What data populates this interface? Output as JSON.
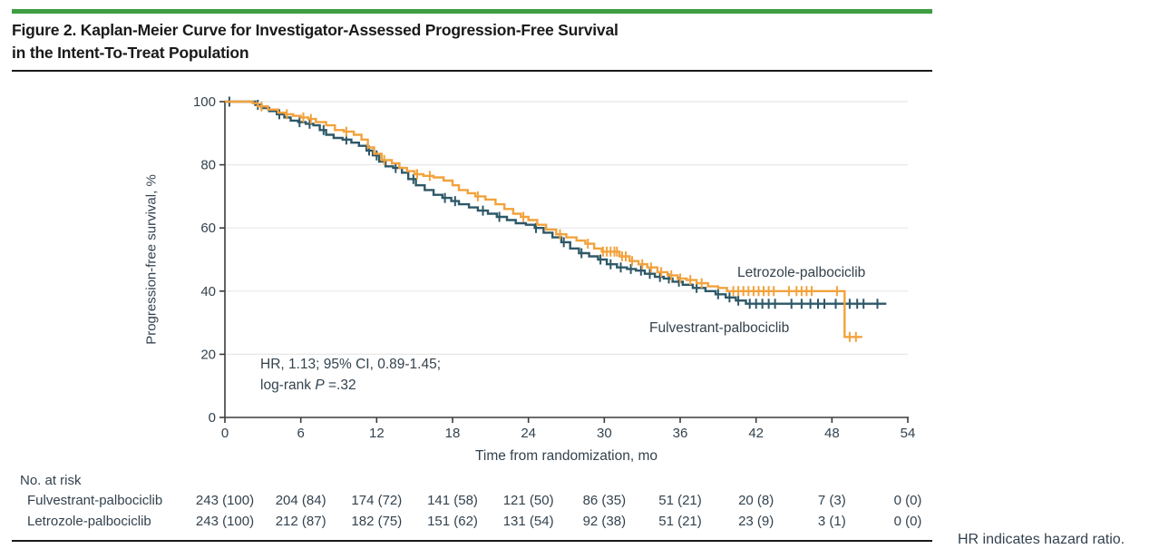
{
  "figure": {
    "title_line1": "Figure 2. Kaplan-Meier Curve for Investigator-Assessed Progression-Free Survival",
    "title_line2": "in the Intent-To-Treat Population"
  },
  "colors": {
    "accent_bar": "#3E9E41",
    "title_text": "#1A1A1A",
    "body_text": "#33424E",
    "rule": "#1A1A1A",
    "gridline": "#E8E8E8",
    "axis": "#3C3C3C",
    "fulvestrant": "#2E5868",
    "letrozole": "#F2A23C"
  },
  "chart_data": {
    "type": "line",
    "subtype": "kaplan-meier-step",
    "title": "Kaplan-Meier Curve for Investigator-Assessed Progression-Free Survival in the Intent-To-Treat Population",
    "x_axis_label": "Time from randomization, mo",
    "y_axis_label": "Progression-free survival, %",
    "xlim": [
      0,
      54
    ],
    "ylim": [
      0,
      100
    ],
    "x_ticks": [
      0,
      6,
      12,
      18,
      24,
      30,
      36,
      42,
      48,
      54
    ],
    "y_ticks": [
      0,
      20,
      40,
      60,
      80,
      100
    ],
    "grid": "horizontal-gridlines-on",
    "legend_position": "labels-on-plot",
    "annotation": {
      "line1": "HR, 1.13; 95% CI, 0.89-1.45;",
      "line2_prefix": "log-rank ",
      "line2_italic": "P",
      "line2_suffix": " =.32"
    },
    "series": [
      {
        "name": "Fulvestrant-palbociclib",
        "color": "#2E5868",
        "points": [
          [
            0,
            100
          ],
          [
            2.4,
            99
          ],
          [
            2.9,
            98
          ],
          [
            3.5,
            97
          ],
          [
            4.1,
            96
          ],
          [
            4.7,
            95
          ],
          [
            5.2,
            94
          ],
          [
            5.8,
            93.5
          ],
          [
            6.4,
            93
          ],
          [
            7,
            92.5
          ],
          [
            7.5,
            91
          ],
          [
            8,
            89.5
          ],
          [
            8.6,
            88.5
          ],
          [
            9.3,
            88
          ],
          [
            10,
            87
          ],
          [
            10.6,
            86
          ],
          [
            11.2,
            84.5
          ],
          [
            11.7,
            83
          ],
          [
            12.2,
            81
          ],
          [
            12.7,
            79.5
          ],
          [
            13.3,
            79
          ],
          [
            14,
            77.5
          ],
          [
            14.5,
            75.5
          ],
          [
            15.1,
            73.5
          ],
          [
            15.8,
            72
          ],
          [
            16.5,
            70.5
          ],
          [
            17.2,
            69.5
          ],
          [
            17.9,
            68.5
          ],
          [
            18.5,
            67.5
          ],
          [
            19.3,
            66.5
          ],
          [
            20,
            65.5
          ],
          [
            20.8,
            64.5
          ],
          [
            21.5,
            63.5
          ],
          [
            22.3,
            62.5
          ],
          [
            23,
            61.5
          ],
          [
            23.8,
            61
          ],
          [
            24.5,
            60
          ],
          [
            25.2,
            58.5
          ],
          [
            25.9,
            57
          ],
          [
            26.6,
            55.5
          ],
          [
            27.3,
            53.5
          ],
          [
            28,
            52
          ],
          [
            28.8,
            51
          ],
          [
            29.5,
            50
          ],
          [
            30.2,
            48.5
          ],
          [
            31,
            47.5
          ],
          [
            31.8,
            47
          ],
          [
            32.5,
            46.5
          ],
          [
            33.2,
            45.5
          ],
          [
            34,
            44.5
          ],
          [
            34.7,
            44
          ],
          [
            35.4,
            43
          ],
          [
            36.2,
            42
          ],
          [
            37,
            41
          ],
          [
            38,
            40
          ],
          [
            38.8,
            39
          ],
          [
            39.6,
            38
          ],
          [
            40.4,
            37
          ],
          [
            41.2,
            36
          ],
          [
            52.3,
            36
          ]
        ],
        "censor_marks": [
          [
            0.35,
            100
          ],
          [
            2.6,
            99
          ],
          [
            4.3,
            96
          ],
          [
            5.9,
            93.5
          ],
          [
            6.7,
            93
          ],
          [
            7.8,
            91
          ],
          [
            9.6,
            88
          ],
          [
            11.4,
            84.5
          ],
          [
            12,
            83
          ],
          [
            13.5,
            79
          ],
          [
            14.9,
            75.5
          ],
          [
            17.4,
            69.5
          ],
          [
            18.2,
            68.5
          ],
          [
            20.4,
            65.5
          ],
          [
            21.7,
            63.5
          ],
          [
            24.6,
            60
          ],
          [
            26.8,
            55.5
          ],
          [
            28.2,
            52
          ],
          [
            29.7,
            50
          ],
          [
            30.5,
            48.5
          ],
          [
            31.3,
            47.5
          ],
          [
            32.1,
            47
          ],
          [
            32.9,
            46.5
          ],
          [
            33.6,
            45.5
          ],
          [
            34.4,
            44.5
          ],
          [
            35.1,
            44
          ],
          [
            35.9,
            43
          ],
          [
            37.3,
            41
          ],
          [
            39,
            39
          ],
          [
            39.9,
            38
          ],
          [
            40.6,
            37
          ],
          [
            41.5,
            36
          ],
          [
            42,
            36
          ],
          [
            42.5,
            36
          ],
          [
            43,
            36
          ],
          [
            43.5,
            36
          ],
          [
            44.8,
            36
          ],
          [
            45.6,
            36
          ],
          [
            46.3,
            36
          ],
          [
            46.9,
            36
          ],
          [
            47.4,
            36
          ],
          [
            48.3,
            36
          ],
          [
            49.4,
            36
          ],
          [
            50,
            36
          ],
          [
            50.5,
            36
          ],
          [
            51.6,
            36
          ]
        ]
      },
      {
        "name": "Letrozole-palbociclib",
        "color": "#F2A23C",
        "points": [
          [
            0,
            100
          ],
          [
            2.2,
            99.5
          ],
          [
            2.6,
            98.5
          ],
          [
            3.4,
            97.5
          ],
          [
            4.2,
            96.5
          ],
          [
            4.8,
            96
          ],
          [
            5.4,
            95.5
          ],
          [
            6,
            95
          ],
          [
            6.6,
            94.5
          ],
          [
            7.2,
            93.5
          ],
          [
            8,
            92.5
          ],
          [
            8.7,
            91
          ],
          [
            9.4,
            90.5
          ],
          [
            10.2,
            89.5
          ],
          [
            10.8,
            88
          ],
          [
            11.3,
            85.5
          ],
          [
            11.8,
            83.5
          ],
          [
            12.4,
            81.5
          ],
          [
            13.2,
            80.5
          ],
          [
            13.8,
            79
          ],
          [
            14.4,
            78
          ],
          [
            15,
            77
          ],
          [
            15.7,
            76.5
          ],
          [
            16.5,
            76
          ],
          [
            17.3,
            75
          ],
          [
            18,
            73.5
          ],
          [
            18.5,
            72
          ],
          [
            19.2,
            71
          ],
          [
            19.8,
            70
          ],
          [
            20.6,
            69
          ],
          [
            21.4,
            67.5
          ],
          [
            22.1,
            66
          ],
          [
            22.8,
            64.5
          ],
          [
            23.4,
            63.5
          ],
          [
            24,
            62.5
          ],
          [
            24.7,
            61
          ],
          [
            25.4,
            59.5
          ],
          [
            26.2,
            58
          ],
          [
            27,
            57
          ],
          [
            27.8,
            56
          ],
          [
            28.5,
            55
          ],
          [
            29.2,
            53.5
          ],
          [
            29.8,
            52.5
          ],
          [
            31.2,
            51
          ],
          [
            32,
            49.5
          ],
          [
            32.7,
            48.5
          ],
          [
            33.4,
            47.5
          ],
          [
            34.2,
            46
          ],
          [
            35,
            45
          ],
          [
            35.8,
            44
          ],
          [
            36.5,
            43.5
          ],
          [
            37.3,
            42.5
          ],
          [
            38.2,
            41.5
          ],
          [
            39,
            41
          ],
          [
            39.7,
            40
          ],
          [
            49,
            25.5
          ],
          [
            50.4,
            25.5
          ]
        ],
        "censor_marks": [
          [
            2.9,
            98.5
          ],
          [
            4.9,
            96
          ],
          [
            6.2,
            95
          ],
          [
            6.8,
            94.5
          ],
          [
            9.6,
            90.5
          ],
          [
            12.6,
            81.5
          ],
          [
            15.2,
            77
          ],
          [
            16.2,
            76.5
          ],
          [
            20,
            70
          ],
          [
            23.6,
            63.5
          ],
          [
            26.5,
            58
          ],
          [
            28.7,
            55
          ],
          [
            29.9,
            52.5
          ],
          [
            30.2,
            52.5
          ],
          [
            30.5,
            52.5
          ],
          [
            30.8,
            52.5
          ],
          [
            31,
            52.5
          ],
          [
            31.4,
            51
          ],
          [
            31.7,
            51
          ],
          [
            32.2,
            49.5
          ],
          [
            33,
            48.5
          ],
          [
            33.7,
            47.5
          ],
          [
            34.5,
            46
          ],
          [
            35.3,
            45
          ],
          [
            36,
            44
          ],
          [
            36.8,
            43.5
          ],
          [
            37.7,
            42.5
          ],
          [
            40.2,
            40
          ],
          [
            40.6,
            40
          ],
          [
            41,
            40
          ],
          [
            41.4,
            40
          ],
          [
            41.8,
            40
          ],
          [
            42.2,
            40
          ],
          [
            42.6,
            40
          ],
          [
            43,
            40
          ],
          [
            43.4,
            40
          ],
          [
            44.6,
            40
          ],
          [
            45.2,
            40
          ],
          [
            45.6,
            40
          ],
          [
            46,
            40
          ],
          [
            46.4,
            40
          ],
          [
            48.4,
            40
          ],
          [
            49.4,
            25.5
          ],
          [
            49.9,
            25.5
          ]
        ]
      }
    ]
  },
  "risk_table": {
    "title": "No. at risk",
    "rows": [
      {
        "label": "Fulvestrant-palbociclib",
        "values": [
          "243 (100)",
          "204 (84)",
          "174 (72)",
          "141 (58)",
          "121 (50)",
          "86 (35)",
          "51 (21)",
          "20 (8)",
          "7 (3)",
          "0 (0)"
        ]
      },
      {
        "label": "Letrozole-palbociclib",
        "values": [
          "243 (100)",
          "212 (87)",
          "182 (75)",
          "151 (62)",
          "131 (54)",
          "92 (38)",
          "51 (21)",
          "23 (9)",
          "3 (1)",
          "0 (0)"
        ]
      }
    ]
  },
  "footnote": "HR indicates hazard ratio."
}
